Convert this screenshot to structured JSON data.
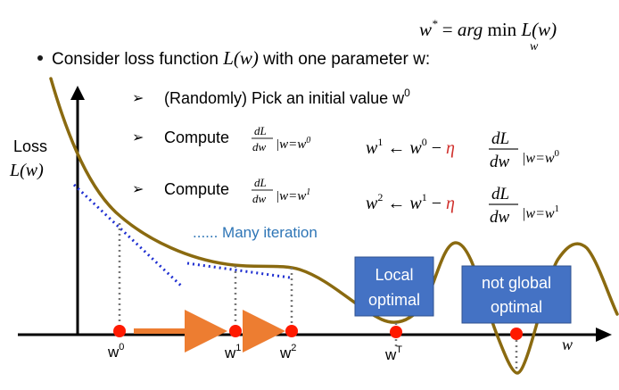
{
  "formula_top": {
    "lhs": "w",
    "star": "*",
    "eq": " = ",
    "arg": "arg",
    "min": "min",
    "sub": "w",
    "rhs": " L(w)"
  },
  "bullet": {
    "text": "Consider loss function ",
    "func": "L(w)",
    "tail": " with one parameter w:"
  },
  "steps": [
    {
      "arrow": "➢",
      "text": "(Randomly) Pick an initial value w",
      "sup": "0"
    },
    {
      "arrow": "➢",
      "text": "Compute",
      "num": "dL",
      "den": "dw",
      "cond": "|w=w",
      "csup": "0"
    },
    {
      "arrow": "➢",
      "text": "Compute",
      "num": "dL",
      "den": "dw",
      "cond": "|w=w",
      "csup": "1"
    }
  ],
  "update_rules": [
    {
      "lhs": "w",
      "lhs_sup": "1",
      "arrow": " ← ",
      "prev": "w",
      "prev_sup": "0",
      "minus": " − ",
      "eta": "η",
      "num": "dL",
      "den": "dw",
      "cond": "|w=w",
      "csup": "0"
    },
    {
      "lhs": "w",
      "lhs_sup": "2",
      "arrow": " ← ",
      "prev": "w",
      "prev_sup": "1",
      "minus": " − ",
      "eta": "η",
      "num": "dL",
      "den": "dw",
      "cond": "|w=w",
      "csup": "1"
    }
  ],
  "iteration_note": "...... Many iteration",
  "axes": {
    "y_label_1": "Loss",
    "y_label_2": "L(w)",
    "x_label": "w"
  },
  "points": [
    {
      "label": "w",
      "sup": "0"
    },
    {
      "label": "w",
      "sup": "1"
    },
    {
      "label": "w",
      "sup": "2"
    },
    {
      "label": "w",
      "sup": "T"
    }
  ],
  "boxes": [
    {
      "line1": "Local",
      "line2": "optimal"
    },
    {
      "line1": "not global",
      "line2": "optimal"
    }
  ],
  "colors": {
    "curve": "#8a6a10",
    "tangent": "#1f2fd1",
    "point": "#ff1a00",
    "step_arrow": "#ed7d31",
    "box": "#4472c4",
    "eta": "#d0312d",
    "note": "#2e75b6"
  }
}
